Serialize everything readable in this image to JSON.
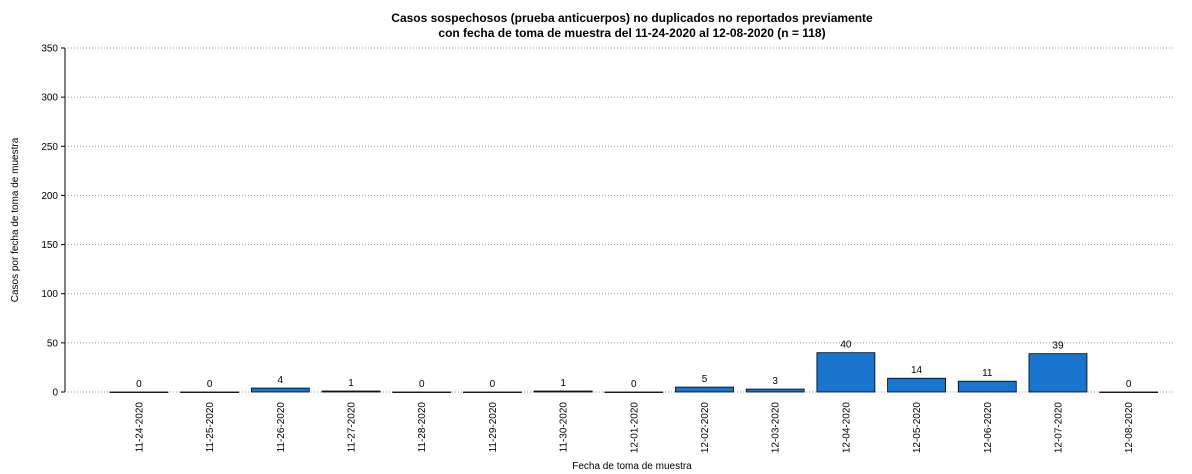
{
  "chart_data": {
    "type": "bar",
    "title": [
      "Casos sospechosos (prueba anticuerpos) no duplicados no reportados previamente",
      "con fecha de toma de muestra del 11-24-2020 al 12-08-2020 (n = 118)"
    ],
    "x_label": "Fecha de toma de muestra",
    "y_label": "Casos por fecha de toma de muestra",
    "categories": [
      "11-24-2020",
      "11-25-2020",
      "11-26-2020",
      "11-27-2020",
      "11-28-2020",
      "11-29-2020",
      "11-30-2020",
      "12-01-2020",
      "12-02-2020",
      "12-03-2020",
      "12-04-2020",
      "12-05-2020",
      "12-06-2020",
      "12-07-2020",
      "12-08-2020"
    ],
    "values": [
      0,
      0,
      4,
      1,
      0,
      0,
      1,
      0,
      5,
      3,
      40,
      14,
      11,
      39,
      0
    ],
    "color": "#1874cd",
    "ylim": [
      0,
      350
    ],
    "yticks": [
      0,
      50,
      100,
      150,
      200,
      250,
      300,
      350
    ],
    "grid": true
  }
}
